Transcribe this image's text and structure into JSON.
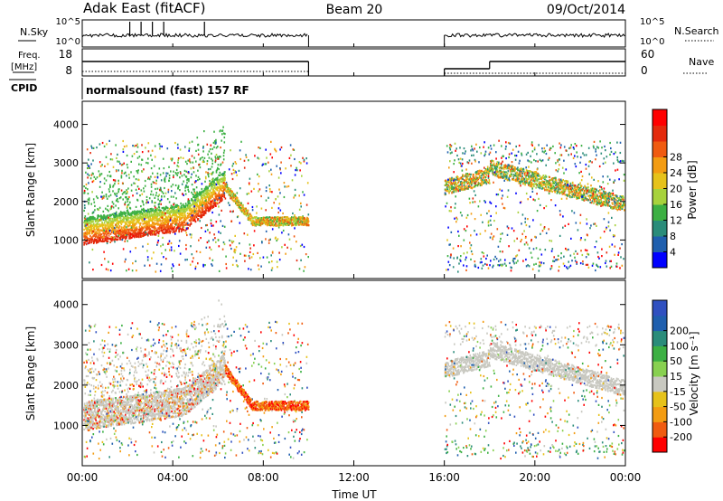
{
  "header": {
    "title": "Adak East (fitACF)",
    "beam": "Beam 20",
    "date": "09/Oct/2014"
  },
  "colors": {
    "power_scale": [
      "#0000ff",
      "#1f5fae",
      "#2a8c7a",
      "#3cb043",
      "#a7d23c",
      "#e6c21a",
      "#f39c12",
      "#f05b10",
      "#e42a0c",
      "#ff0000"
    ],
    "velocity_scale": [
      "#ff0000",
      "#f05b10",
      "#f39c12",
      "#e6c21a",
      "#c8c8c0",
      "#88d050",
      "#3cb043",
      "#2a8c7a",
      "#1f5fae",
      "#3050c0"
    ],
    "ground_scatter": "#c8c8c0"
  },
  "chart_data": [
    {
      "type": "line",
      "panel": "noise",
      "left_label": "N.Sky",
      "right_label": "N.Search",
      "left_ticks": [
        "10^5",
        "10^0"
      ],
      "right_ticks": [
        "10^5",
        "10^0"
      ],
      "data_segments": [
        [
          0,
          10
        ],
        [
          16,
          24
        ]
      ]
    },
    {
      "type": "line",
      "panel": "frequency",
      "left_label_lines": [
        "Freq.",
        "[MHz]"
      ],
      "right_label": "Nave",
      "left_ticks": [
        "18",
        "8"
      ],
      "right_ticks": [
        "60",
        "0"
      ],
      "freq_series": [
        {
          "x": [
            0,
            10
          ],
          "y": 14
        },
        {
          "x": [
            16,
            18
          ],
          "y": 10
        },
        {
          "x": [
            18,
            24
          ],
          "y": 14
        }
      ]
    },
    {
      "type": "table",
      "panel": "cpid",
      "label": "CPID",
      "program": "normalsound (fast) 157 RF"
    },
    {
      "type": "heatmap",
      "panel": "power",
      "ylabel": "Slant Range [km]",
      "ylim": [
        0,
        4600
      ],
      "y_ticks": [
        1000,
        2000,
        3000,
        4000
      ],
      "colorbar_label": "Power [dB]",
      "colorbar_ticks": [
        "4",
        "8",
        "12",
        "16",
        "20",
        "24",
        "28"
      ]
    },
    {
      "type": "heatmap",
      "panel": "velocity",
      "ylabel": "Slant Range [km]",
      "ylim": [
        0,
        4600
      ],
      "y_ticks": [
        1000,
        2000,
        3000,
        4000
      ],
      "colorbar_label": "Velocity [m s⁻¹]",
      "colorbar_ticks": [
        "-200",
        "-100",
        "-50",
        "-15",
        "15",
        "50",
        "100",
        "200"
      ]
    }
  ],
  "time_axis": {
    "label": "Time UT",
    "ticks": [
      "00:00",
      "04:00",
      "08:00",
      "12:00",
      "16:00",
      "20:00",
      "00:00"
    ],
    "range_hours": [
      0,
      24
    ]
  }
}
